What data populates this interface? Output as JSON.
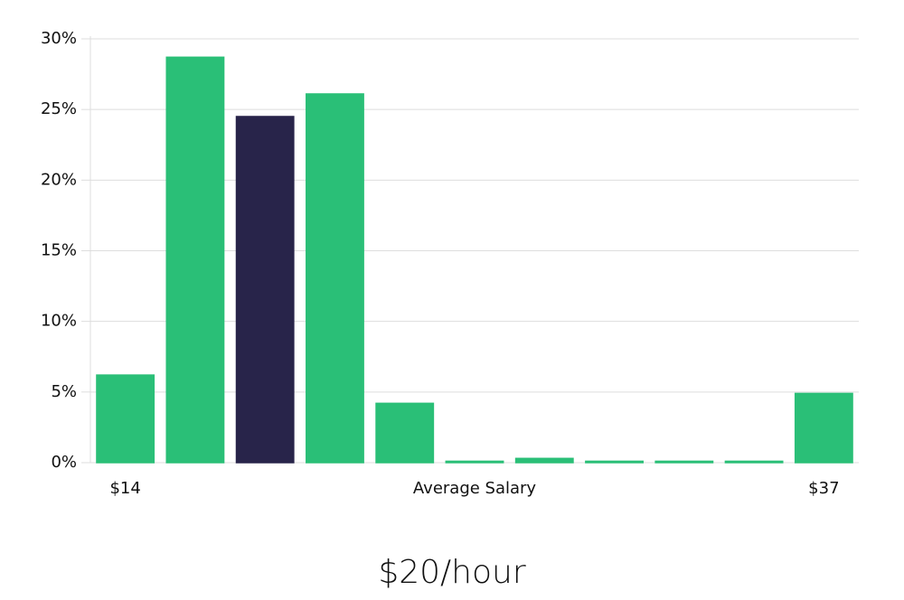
{
  "chart_data": {
    "type": "bar",
    "categories": [
      "$14",
      null,
      null,
      null,
      null,
      null,
      null,
      null,
      null,
      null,
      "$37"
    ],
    "values": [
      6.2,
      28.7,
      24.5,
      26.1,
      4.2,
      0.1,
      0.3,
      0.1,
      0.1,
      0.1,
      4.9
    ],
    "colors": [
      "#2abf77",
      "#2abf77",
      "#28244a",
      "#2abf77",
      "#2abf77",
      "#2abf77",
      "#2abf77",
      "#2abf77",
      "#2abf77",
      "#2abf77",
      "#2abf77"
    ],
    "x_label": "Average Salary",
    "annotation": "$20/hour",
    "ylim": [
      0,
      30
    ],
    "yticks": [
      {
        "value": 0,
        "label": "0%"
      },
      {
        "value": 5,
        "label": "5%"
      },
      {
        "value": 10,
        "label": "10%"
      },
      {
        "value": 15,
        "label": "15%"
      },
      {
        "value": 20,
        "label": "20%"
      },
      {
        "value": 25,
        "label": "25%"
      },
      {
        "value": 30,
        "label": "30%"
      }
    ],
    "grid": true
  }
}
